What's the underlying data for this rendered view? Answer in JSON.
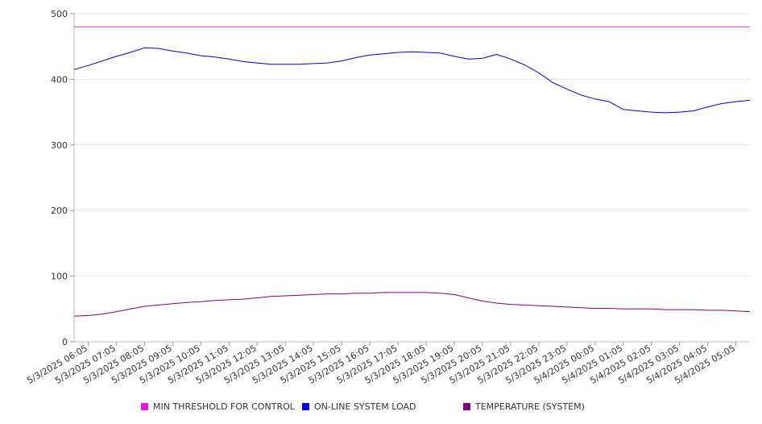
{
  "chart_data": {
    "type": "line",
    "ylim": [
      0,
      500
    ],
    "yticks": [
      0,
      100,
      200,
      300,
      400,
      500
    ],
    "grid": true,
    "legend_position": "bottom",
    "x_tick_labels": [
      "5/3/2025 06:05",
      "5/3/2025 07:05",
      "5/3/2025 08:05",
      "5/3/2025 09:05",
      "5/3/2025 10:05",
      "5/3/2025 11:05",
      "5/3/2025 12:05",
      "5/3/2025 13:05",
      "5/3/2025 14:05",
      "5/3/2025 15:05",
      "5/3/2025 16:05",
      "5/3/2025 17:05",
      "5/3/2025 18:05",
      "5/3/2025 19:05",
      "5/3/2025 20:05",
      "5/3/2025 21:05",
      "5/3/2025 22:05",
      "5/3/2025 23:05",
      "5/4/2025 00:05",
      "5/4/2025 01:05",
      "5/4/2025 02:05",
      "5/4/2025 03:05",
      "5/4/2025 04:05",
      "5/4/2025 05:05"
    ],
    "x_start": "5/3/2025 05:35",
    "x_end": "5/4/2025 05:35",
    "x": [
      "5/3/2025 05:35",
      "5/3/2025 06:05",
      "5/3/2025 06:35",
      "5/3/2025 07:05",
      "5/3/2025 07:35",
      "5/3/2025 08:05",
      "5/3/2025 08:35",
      "5/3/2025 09:05",
      "5/3/2025 09:35",
      "5/3/2025 10:05",
      "5/3/2025 10:35",
      "5/3/2025 11:05",
      "5/3/2025 11:35",
      "5/3/2025 12:05",
      "5/3/2025 12:35",
      "5/3/2025 13:05",
      "5/3/2025 13:35",
      "5/3/2025 14:05",
      "5/3/2025 14:35",
      "5/3/2025 15:05",
      "5/3/2025 15:35",
      "5/3/2025 16:05",
      "5/3/2025 16:35",
      "5/3/2025 17:05",
      "5/3/2025 17:35",
      "5/3/2025 18:05",
      "5/3/2025 18:35",
      "5/3/2025 19:05",
      "5/3/2025 19:35",
      "5/3/2025 20:05",
      "5/3/2025 20:35",
      "5/3/2025 21:05",
      "5/3/2025 21:35",
      "5/3/2025 22:05",
      "5/3/2025 22:35",
      "5/3/2025 23:05",
      "5/3/2025 23:35",
      "5/4/2025 00:05",
      "5/4/2025 00:35",
      "5/4/2025 01:05",
      "5/4/2025 01:35",
      "5/4/2025 02:05",
      "5/4/2025 02:35",
      "5/4/2025 03:05",
      "5/4/2025 03:35",
      "5/4/2025 04:05",
      "5/4/2025 04:35",
      "5/4/2025 05:05",
      "5/4/2025 05:35"
    ],
    "series": [
      {
        "name": "MIN THRESHOLD FOR CONTROL",
        "color": "#cc33cc",
        "values": [
          480,
          480,
          480,
          480,
          480,
          480,
          480,
          480,
          480,
          480,
          480,
          480,
          480,
          480,
          480,
          480,
          480,
          480,
          480,
          480,
          480,
          480,
          480,
          480,
          480,
          480,
          480,
          480,
          480,
          480,
          480,
          480,
          480,
          480,
          480,
          480,
          480,
          480,
          480,
          480,
          480,
          480,
          480,
          480,
          480,
          480,
          480,
          480,
          480
        ]
      },
      {
        "name": "ON-LINE SYSTEM LOAD",
        "color": "#0000cc",
        "values": [
          415,
          421,
          428,
          435,
          441,
          448,
          447,
          443,
          440,
          436,
          434,
          431,
          427,
          425,
          423,
          423,
          423,
          424,
          425,
          428,
          433,
          437,
          439,
          441,
          442,
          441,
          440,
          435,
          431,
          432,
          438,
          431,
          422,
          410,
          395,
          385,
          376,
          370,
          366,
          354,
          352,
          350,
          349,
          350,
          352,
          358,
          363,
          366,
          368
        ]
      },
      {
        "name": "TEMPERATURE (SYSTEM)",
        "color": "#800080",
        "values": [
          39,
          40,
          42,
          46,
          50,
          54,
          56,
          58,
          60,
          61,
          63,
          64,
          65,
          67,
          69,
          70,
          71,
          72,
          73,
          73,
          74,
          74,
          75,
          75,
          75,
          75,
          74,
          72,
          67,
          62,
          59,
          57,
          56,
          55,
          54,
          53,
          52,
          51,
          51,
          50,
          50,
          50,
          49,
          49,
          49,
          48,
          48,
          47,
          46
        ]
      }
    ]
  },
  "legend": [
    {
      "label": "MIN THRESHOLD FOR CONTROL",
      "color": "#ee11ee"
    },
    {
      "label": "ON-LINE SYSTEM LOAD",
      "color": "#0000ee"
    },
    {
      "label": "TEMPERATURE (SYSTEM)",
      "color": "#800080"
    }
  ]
}
